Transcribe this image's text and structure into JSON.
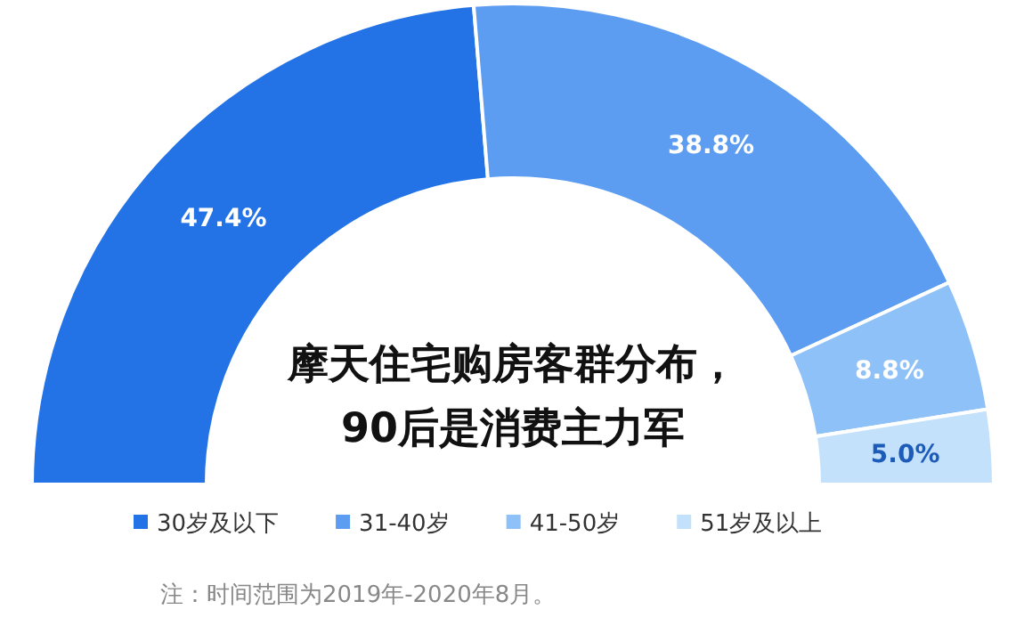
{
  "chart_data": {
    "type": "donut",
    "title": "摩天住宅购房客群分布，\n90后是消费主力军",
    "categories": [
      "30岁及以下",
      "31-40岁",
      "41-50岁",
      "51岁及以上"
    ],
    "values": [
      47.4,
      38.8,
      8.8,
      5.0
    ],
    "value_labels": [
      "47.4%",
      "38.8%",
      "8.8%",
      "5.0%"
    ],
    "colors": [
      "#2373e6",
      "#5c9df2",
      "#8ec1f8",
      "#c4e1fb"
    ],
    "legend": "bottom",
    "annotations": [
      "注：时间范围为2019年-2020年8月。"
    ]
  }
}
